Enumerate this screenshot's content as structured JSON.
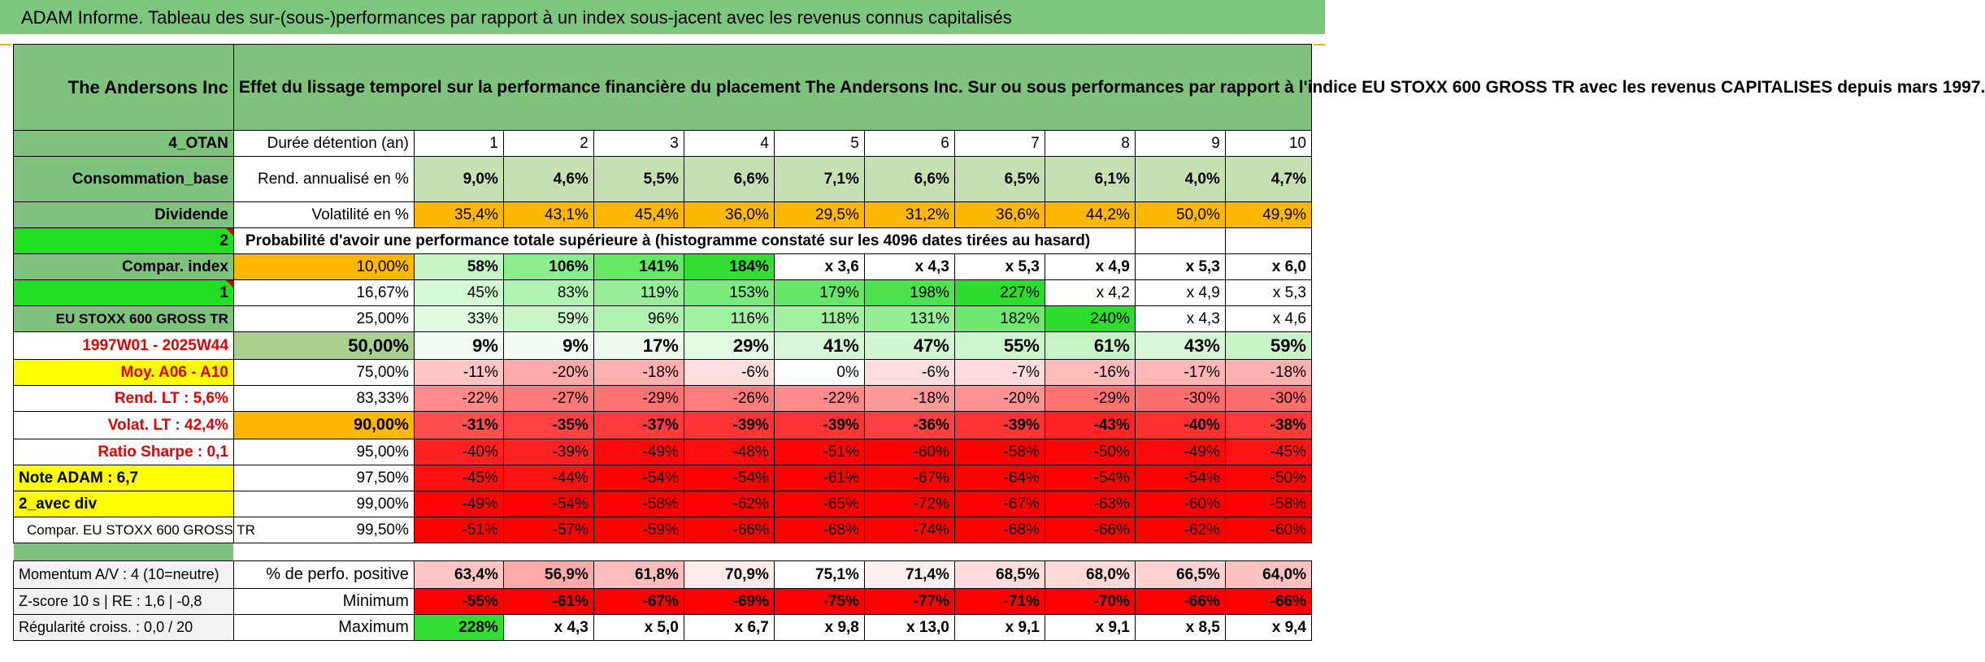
{
  "title": "ADAM Informe. Tableau des sur-(sous-)performances par rapport à un index sous-jacent avec les revenus connus capitalisés",
  "company": "The Andersons Inc",
  "description": "Effet du lissage temporel sur la performance financière du placement The Andersons Inc. Sur ou sous performances par rapport à l'indice EU STOXX 600 GROSS TR avec les revenus CAPITALISES depuis mars 1997.",
  "left_labels": {
    "otan": "4_OTAN",
    "sector": "Consommation_base",
    "dividend_label": "Dividende",
    "dividend_value": "2",
    "compar_index": "Compar. index",
    "compar_index_value": "1",
    "index_name": "EU STOXX 600 GROSS TR",
    "period": "1997W01 - 2025W44",
    "moy": "Moy. A06 - A10",
    "rend_lt": "Rend. LT :   5,6%",
    "volat_lt": "Volat. LT :   42,4%",
    "sharpe": "Ratio Sharpe :    0,1",
    "note": "Note ADAM : 6,7",
    "avec_div": "2_avec div",
    "compar_full": "Compar. EU STOXX 600 GROSS TR",
    "momentum": "Momentum A/V : 4 (10=neutre)",
    "zscore": "Z-score 10 s | RE : 1,6 | -0,8",
    "regularite": "Régularité croiss. : 0,0 / 20"
  },
  "headers": {
    "duree": "Durée détention (an)",
    "years": [
      "1",
      "2",
      "3",
      "4",
      "5",
      "6",
      "7",
      "8",
      "9",
      "10"
    ],
    "rend": "Rend. annualisé en %",
    "rend_values": [
      "9,0%",
      "4,6%",
      "5,5%",
      "6,6%",
      "7,1%",
      "6,6%",
      "6,5%",
      "6,1%",
      "4,0%",
      "4,7%"
    ],
    "vol": "Volatilité en %",
    "vol_values": [
      "35,4%",
      "43,1%",
      "45,4%",
      "36,0%",
      "29,5%",
      "31,2%",
      "36,6%",
      "44,2%",
      "50,0%",
      "49,9%"
    ],
    "proba": "Probabilité d'avoir une performance totale supérieure à (histogramme constaté sur les 4096 dates tirées au hasard)"
  },
  "rows": [
    {
      "pct": "10,00%",
      "values": [
        "58%",
        "106%",
        "141%",
        "184%",
        "x 3,6",
        "x 4,3",
        "x 5,3",
        "x 4,9",
        "x 5,3",
        "x 6,0"
      ]
    },
    {
      "pct": "16,67%",
      "values": [
        "45%",
        "83%",
        "119%",
        "153%",
        "179%",
        "198%",
        "227%",
        "x 4,2",
        "x 4,9",
        "x 5,3"
      ]
    },
    {
      "pct": "25,00%",
      "values": [
        "33%",
        "59%",
        "96%",
        "116%",
        "118%",
        "131%",
        "182%",
        "240%",
        "x 4,3",
        "x 4,6"
      ]
    },
    {
      "pct": "50,00%",
      "values": [
        "9%",
        "9%",
        "17%",
        "29%",
        "41%",
        "47%",
        "55%",
        "61%",
        "43%",
        "59%"
      ]
    },
    {
      "pct": "75,00%",
      "values": [
        "-11%",
        "-20%",
        "-18%",
        "-6%",
        "0%",
        "-6%",
        "-7%",
        "-16%",
        "-17%",
        "-18%"
      ]
    },
    {
      "pct": "83,33%",
      "values": [
        "-22%",
        "-27%",
        "-29%",
        "-26%",
        "-22%",
        "-18%",
        "-20%",
        "-29%",
        "-30%",
        "-30%"
      ]
    },
    {
      "pct": "90,00%",
      "values": [
        "-31%",
        "-35%",
        "-37%",
        "-39%",
        "-39%",
        "-36%",
        "-39%",
        "-43%",
        "-40%",
        "-38%"
      ]
    },
    {
      "pct": "95,00%",
      "values": [
        "-40%",
        "-39%",
        "-49%",
        "-48%",
        "-51%",
        "-60%",
        "-58%",
        "-50%",
        "-49%",
        "-45%"
      ]
    },
    {
      "pct": "97,50%",
      "values": [
        "-45%",
        "-44%",
        "-54%",
        "-54%",
        "-61%",
        "-67%",
        "-64%",
        "-54%",
        "-54%",
        "-50%"
      ]
    },
    {
      "pct": "99,00%",
      "values": [
        "-49%",
        "-54%",
        "-58%",
        "-62%",
        "-65%",
        "-72%",
        "-67%",
        "-63%",
        "-60%",
        "-58%"
      ]
    },
    {
      "pct": "99,50%",
      "values": [
        "-51%",
        "-57%",
        "-59%",
        "-66%",
        "-68%",
        "-74%",
        "-68%",
        "-66%",
        "-62%",
        "-60%"
      ]
    }
  ],
  "stats": {
    "positive_label": "% de perfo. positive",
    "positive_values": [
      "63,4%",
      "56,9%",
      "61,8%",
      "70,9%",
      "75,1%",
      "71,4%",
      "68,5%",
      "68,0%",
      "66,5%",
      "64,0%"
    ],
    "minimum_label": "Minimum",
    "minimum_values": [
      "-55%",
      "-61%",
      "-67%",
      "-69%",
      "-75%",
      "-77%",
      "-71%",
      "-70%",
      "-66%",
      "-66%"
    ],
    "maximum_label": "Maximum",
    "maximum_values": [
      "228%",
      "x 4,3",
      "x 5,0",
      "x 6,7",
      "x 9,8",
      "x 13,0",
      "x 9,1",
      "x 9,1",
      "x 8,5",
      "x 9,4"
    ]
  },
  "colors": {
    "green_header": "#7ec27e",
    "bright_green": "#22dd22",
    "yellow": "#ffff00",
    "orange": "#ffb800",
    "red_text": "#e00000"
  }
}
